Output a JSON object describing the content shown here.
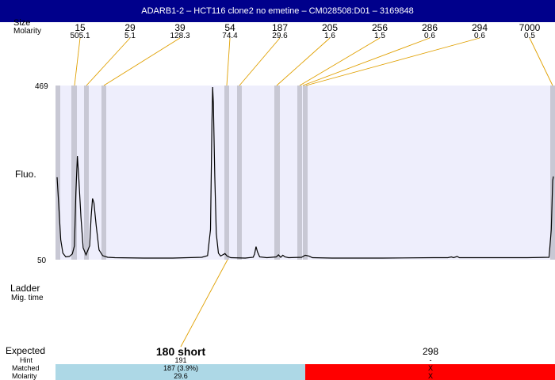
{
  "header": {
    "title": "ADARB1-2 – HCT116 clone2 no emetine – CM028508:D01 – 3169848"
  },
  "labels": {
    "size": "Size",
    "molarity": "Molarity",
    "fluo": "Fluo.",
    "ladder": "Ladder",
    "mig_time": "Mig. time",
    "expected": "Expected",
    "hint": "Hint",
    "matched": "Matched",
    "molarity_bottom": "Molarity",
    "y_max": "469",
    "y_min": "50"
  },
  "colors": {
    "title_bg": "#00008b",
    "plot_bg": "#eeeefc",
    "marker_band": "#c8c8d4",
    "leader_line": "#e0a000",
    "trace": "#000000",
    "matched_band": "#add8e6",
    "unmatched_band": "#ff0000"
  },
  "chart_data": {
    "type": "line",
    "ylim": [
      50,
      469
    ],
    "peaks": [
      {
        "size": "15",
        "molarity": "505.1"
      },
      {
        "size": "29",
        "molarity": "5.1"
      },
      {
        "size": "39",
        "molarity": "128.3"
      },
      {
        "size": "54",
        "molarity": "74.4"
      },
      {
        "size": "187",
        "molarity": "29.6"
      },
      {
        "size": "205",
        "molarity": "1.6"
      },
      {
        "size": "256",
        "molarity": "1.5"
      },
      {
        "size": "286",
        "molarity": "0.6"
      },
      {
        "size": "294",
        "molarity": "0.6"
      },
      {
        "size": "7000",
        "molarity": "0.5"
      }
    ],
    "trace": [
      [
        0,
        248
      ],
      [
        2,
        190
      ],
      [
        5,
        95
      ],
      [
        8,
        62
      ],
      [
        12,
        53
      ],
      [
        17,
        54
      ],
      [
        21,
        60
      ],
      [
        24,
        80
      ],
      [
        26,
        210
      ],
      [
        28,
        300
      ],
      [
        30,
        245
      ],
      [
        33,
        150
      ],
      [
        36,
        75
      ],
      [
        40,
        58
      ],
      [
        45,
        80
      ],
      [
        47,
        150
      ],
      [
        49,
        196
      ],
      [
        51,
        185
      ],
      [
        54,
        130
      ],
      [
        58,
        70
      ],
      [
        63,
        56
      ],
      [
        70,
        52
      ],
      [
        80,
        51
      ],
      [
        120,
        50
      ],
      [
        160,
        50
      ],
      [
        180,
        51
      ],
      [
        200,
        52
      ],
      [
        208,
        56
      ],
      [
        212,
        120
      ],
      [
        214,
        380
      ],
      [
        215,
        469
      ],
      [
        216,
        430
      ],
      [
        218,
        250
      ],
      [
        220,
        110
      ],
      [
        223,
        62
      ],
      [
        226,
        55
      ],
      [
        229,
        58
      ],
      [
        232,
        61
      ],
      [
        235,
        55
      ],
      [
        240,
        51
      ],
      [
        260,
        50
      ],
      [
        271,
        52
      ],
      [
        273,
        60
      ],
      [
        275,
        78
      ],
      [
        277,
        65
      ],
      [
        280,
        53
      ],
      [
        290,
        51
      ],
      [
        303,
        53
      ],
      [
        306,
        58
      ],
      [
        309,
        52
      ],
      [
        312,
        57
      ],
      [
        315,
        53
      ],
      [
        320,
        51
      ],
      [
        338,
        52
      ],
      [
        343,
        57
      ],
      [
        348,
        55
      ],
      [
        353,
        51
      ],
      [
        380,
        50
      ],
      [
        450,
        50
      ],
      [
        520,
        51
      ],
      [
        540,
        51
      ],
      [
        545,
        53
      ],
      [
        548,
        51
      ],
      [
        553,
        54
      ],
      [
        556,
        51
      ],
      [
        600,
        51
      ],
      [
        650,
        51
      ],
      [
        680,
        52
      ],
      [
        683,
        120
      ],
      [
        685,
        240
      ],
      [
        686,
        250
      ]
    ]
  },
  "expected": [
    {
      "title": "180 short",
      "hint": "191",
      "matched": "187 (3.9%)",
      "molarity": "29.6",
      "status": "matched"
    },
    {
      "title": "298",
      "hint": "-",
      "matched": "X",
      "molarity": "X",
      "status": "unmatched"
    }
  ]
}
